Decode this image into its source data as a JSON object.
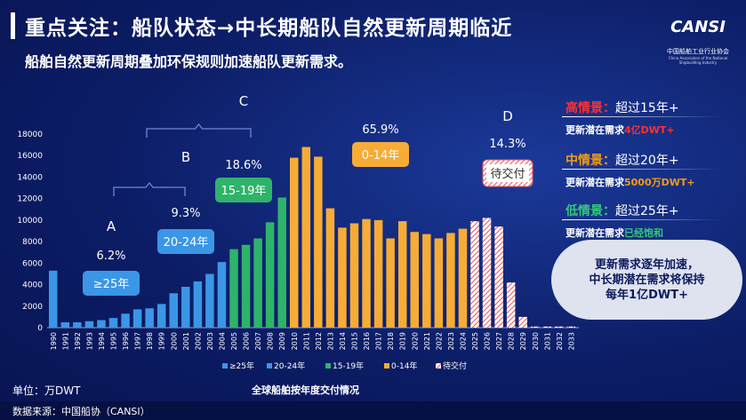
{
  "header": {
    "title": "重点关注：船队状态→中长期船队自然更新周期临近",
    "subtitle": "船舶自然更新周期叠加环保规则加速船队更新需求。",
    "logo_mark": "CANSI",
    "logo_cn": "中国船舶工业行业协会",
    "logo_en": "China Association of the National Shipbuilding Industry"
  },
  "scenarios": [
    {
      "name": "高情景：",
      "cond": "超过15年+",
      "sub_label": "更新潜在需求",
      "sub_value": "4亿DWT+",
      "color": "#ff3030",
      "value_color": "#ff3030"
    },
    {
      "name": "中情景：",
      "cond": "超过20年+",
      "sub_label": "更新潜在需求",
      "sub_value": "5000万DWT+",
      "color": "#f39c12",
      "value_color": "#f39c12"
    },
    {
      "name": "低情景：",
      "cond": "超过25年+",
      "sub_label": "更新潜在需求",
      "sub_value": "已经饱和",
      "color": "#34c77b",
      "value_color": "#34c77b"
    }
  ],
  "cloud": {
    "line1": "更新需求逐年加速，",
    "line2": "中长期潜在需求将保持",
    "line3": "每年1亿DWT+"
  },
  "footer": {
    "unit": "单位：万DWT",
    "source": "数据来源：中国船协（CANSI）",
    "caption": "全球船舶按年度交付情况"
  },
  "groups": [
    {
      "letter": "A",
      "pct": "6.2%",
      "label": "≥25年",
      "color": "#3b96e6"
    },
    {
      "letter": "B",
      "pct": "9.3%",
      "label": "20-24年",
      "color": "#3b96e6"
    },
    {
      "letter": "C",
      "pct": "18.6%",
      "label": "15-19年",
      "color": "#2fb36a"
    },
    {
      "letter": "",
      "pct": "65.9%",
      "label": "0-14年",
      "color": "#f6ac35"
    },
    {
      "letter": "D",
      "pct": "14.3%",
      "label": "待交付",
      "color": "#ffffff"
    }
  ],
  "chart_data": {
    "type": "bar",
    "categories": [
      "1990",
      "1991",
      "1992",
      "1993",
      "1994",
      "1995",
      "1996",
      "1997",
      "1998",
      "1999",
      "2000",
      "2001",
      "2002",
      "2003",
      "2004",
      "2005",
      "2006",
      "2007",
      "2008",
      "2009",
      "2010",
      "2011",
      "2012",
      "2013",
      "2014",
      "2015",
      "2016",
      "2017",
      "2018",
      "2019",
      "2020",
      "2021",
      "2022",
      "2023",
      "2024",
      "2025",
      "2026",
      "2027",
      "2028",
      "2029",
      "2030",
      "2031",
      "2032",
      "2033"
    ],
    "values": [
      5300,
      500,
      500,
      600,
      700,
      900,
      1300,
      1700,
      1800,
      2200,
      3200,
      3800,
      4300,
      5000,
      6100,
      7300,
      7700,
      8300,
      9800,
      12100,
      15800,
      16800,
      15900,
      11100,
      9300,
      9700,
      10100,
      10000,
      8300,
      9900,
      8900,
      8700,
      8300,
      8800,
      9200,
      9900,
      10200,
      9400,
      4200,
      1000,
      100,
      100,
      100,
      100
    ],
    "category_groups": [
      "≥25年",
      "≥25年",
      "≥25年",
      "≥25年",
      "≥25年",
      "≥25年",
      "≥25年",
      "≥25年",
      "≥25年",
      "≥25年",
      "20-24年",
      "20-24年",
      "20-24年",
      "20-24年",
      "20-24年",
      "15-19年",
      "15-19年",
      "15-19年",
      "15-19年",
      "15-19年",
      "0-14年",
      "0-14年",
      "0-14年",
      "0-14年",
      "0-14年",
      "0-14年",
      "0-14年",
      "0-14年",
      "0-14年",
      "0-14年",
      "0-14年",
      "0-14年",
      "0-14年",
      "0-14年",
      "0-14年",
      "待交付",
      "待交付",
      "待交付",
      "待交付",
      "待交付",
      "待交付",
      "待交付",
      "待交付",
      "待交付"
    ],
    "ylim": [
      0,
      18000
    ],
    "yticks": [
      0,
      2000,
      4000,
      6000,
      8000,
      10000,
      12000,
      14000,
      16000,
      18000
    ],
    "legend": [
      "≥25年",
      "20-24年",
      "15-19年",
      "0-14年",
      "待交付"
    ],
    "legend_placement": "bottom",
    "colors": {
      "≥25年": "#3b96e6",
      "20-24年": "#3b96e6",
      "15-19年": "#2fb36a",
      "0-14年": "#f6ac35",
      "待交付": "#ffffff"
    },
    "grid": false
  }
}
